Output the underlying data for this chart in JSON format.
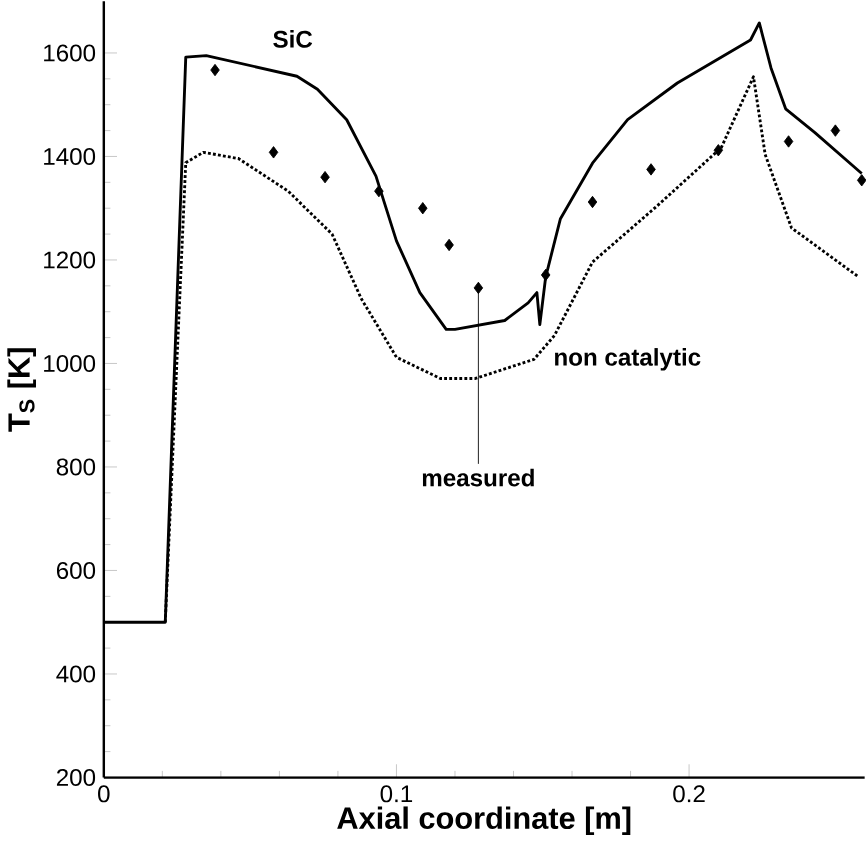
{
  "chart_data": {
    "type": "line",
    "xlabel": "Axial coordinate [m]",
    "ylabel": "T$_{S}$ [K]",
    "xlim": [
      0,
      0.26
    ],
    "ylim": [
      200,
      1700
    ],
    "xticks": [
      0,
      0.1,
      0.2
    ],
    "yticks": [
      200,
      400,
      600,
      800,
      1000,
      1200,
      1400,
      1600
    ],
    "grid": false,
    "series": [
      {
        "name": "SiC",
        "line_style": "solid",
        "color": "#000000",
        "x": [
          0,
          0.021,
          0.028,
          0.035,
          0.066,
          0.073,
          0.083,
          0.093,
          0.1,
          0.108,
          0.117,
          0.12,
          0.137,
          0.145,
          0.148,
          0.149,
          0.151,
          0.156,
          0.167,
          0.179,
          0.196,
          0.221,
          0.224,
          0.228,
          0.233,
          0.243,
          0.259
        ],
        "values": [
          500,
          500,
          1592,
          1595,
          1555,
          1530,
          1471,
          1362,
          1237,
          1137,
          1066,
          1066,
          1083,
          1117,
          1137,
          1075,
          1167,
          1279,
          1387,
          1471,
          1542,
          1625,
          1658,
          1571,
          1492,
          1446,
          1367
        ]
      },
      {
        "name": "non catalytic",
        "line_style": "dotted",
        "color": "#000000",
        "x": [
          0.021,
          0.028,
          0.034,
          0.046,
          0.063,
          0.078,
          0.088,
          0.1,
          0.115,
          0.127,
          0.147,
          0.154,
          0.167,
          0.189,
          0.211,
          0.222,
          0.226,
          0.235,
          0.258
        ],
        "values": [
          500,
          1388,
          1408,
          1396,
          1333,
          1250,
          1125,
          1012,
          971,
          971,
          1008,
          1054,
          1196,
          1304,
          1417,
          1554,
          1404,
          1262,
          1167
        ]
      },
      {
        "name": "measured",
        "type": "scatter",
        "marker": "diamond",
        "color": "#000000",
        "x": [
          0.038,
          0.058,
          0.0756,
          0.094,
          0.109,
          0.118,
          0.128,
          0.151,
          0.167,
          0.187,
          0.21,
          0.234,
          0.25,
          0.259
        ],
        "values": [
          1567,
          1408,
          1360,
          1333,
          1300,
          1229,
          1146,
          1171,
          1312,
          1375,
          1412,
          1429,
          1450,
          1354
        ]
      }
    ]
  }
}
